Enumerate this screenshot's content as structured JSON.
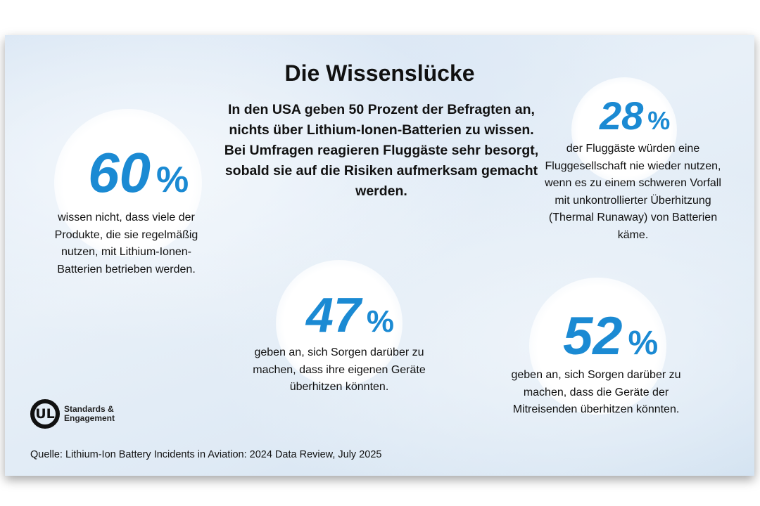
{
  "title": "Die Wissenslücke",
  "intro": "In den USA geben 50 Prozent der Befragten an, nichts über Lithium-Ionen-Batterien zu wissen. Bei Umfragen reagieren Fluggäste sehr besorgt, sobald sie auf die Risiken aufmerksam gemacht werden.",
  "accent_color": "#1b8ad3",
  "stats": [
    {
      "value": "60",
      "unit": "%",
      "text": "wissen nicht, dass viele der Produkte, die sie regelmäßig nutzen, mit Lithium-Ionen-Batterien betrieben werden."
    },
    {
      "value": "28",
      "unit": "%",
      "text": "der Fluggäste würden eine Fluggesellschaft nie wieder nutzen, wenn es zu einem schweren Vorfall mit unkontrollierter Überhitzung (Thermal Runaway) von Batterien käme."
    },
    {
      "value": "47",
      "unit": "%",
      "text": "geben an, sich Sorgen darüber zu machen, dass ihre eigenen Geräte überhitzen könnten."
    },
    {
      "value": "52",
      "unit": "%",
      "text": "geben an, sich Sorgen darüber zu machen, dass die Geräte der Mitreisenden überhitzen könnten."
    }
  ],
  "logo": {
    "mark": "UL",
    "line1": "Standards &",
    "line2": "Engagement"
  },
  "source": "Quelle: Lithium-Ion Battery Incidents in Aviation: 2024 Data Review, July 2025"
}
